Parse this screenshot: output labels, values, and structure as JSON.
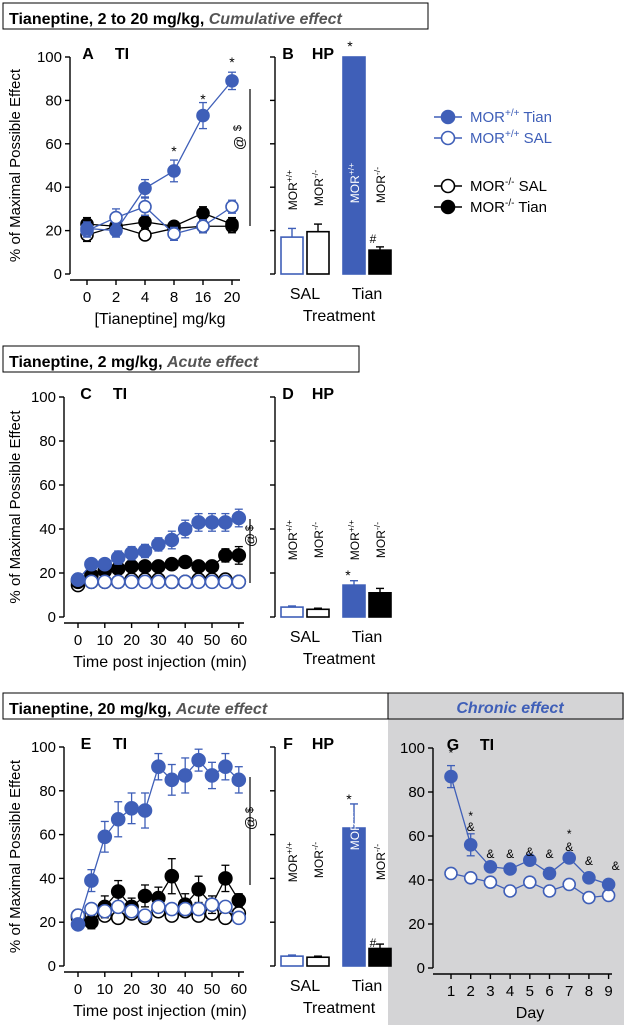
{
  "colors": {
    "blue": "#3f5fb8",
    "black": "#000000",
    "grey_panel": "#d4d4d6"
  },
  "legend": {
    "items": [
      {
        "key": "wt_tian",
        "base": "MOR",
        "sup": "+/+",
        "suffix": " Tian",
        "style": "blue_filled"
      },
      {
        "key": "wt_sal",
        "base": "MOR",
        "sup": "+/+",
        "suffix": " SAL",
        "style": "blue_open"
      },
      {
        "key": "ko_sal",
        "base": "MOR",
        "sup": "-/-",
        "suffix": " SAL",
        "style": "black_open"
      },
      {
        "key": "ko_tian",
        "base": "MOR",
        "sup": "-/-",
        "suffix": " Tian",
        "style": "black_filled"
      }
    ]
  },
  "sections": {
    "s1": {
      "title_bold": "Tianeptine, 2 to 20 mg/kg,",
      "title_italic": "Cumulative effect"
    },
    "s2": {
      "title_bold": "Tianeptine, 2 mg/kg,",
      "title_italic": "Acute effect"
    },
    "s3": {
      "title_bold": "Tianeptine, 20 mg/kg,",
      "title_italic": "Acute effect"
    },
    "s3b": {
      "title_italic": "Chronic effect"
    }
  },
  "axis_common": {
    "ylabel": "% of Maximal Possible Effect",
    "yticks": [
      "0",
      "20",
      "40",
      "60",
      "80",
      "100"
    ],
    "time_xlabel": "Time post injection (min)",
    "time_xticks": [
      "0",
      "10",
      "20",
      "30",
      "40",
      "50",
      "60"
    ],
    "hp_xlabel": "Treatment",
    "hp_groups": [
      "SAL",
      "Tian"
    ],
    "bar_labels": {
      "wt": "MOR+/+",
      "ko": "MOR-/-"
    }
  },
  "chart_data": [
    {
      "id": "A",
      "panel_letter": "A",
      "panel_title": "TI",
      "type": "line",
      "xlabel": "[Tianeptine] mg/kg",
      "ylabel": "% of Maximal Possible Effect",
      "x_categories": [
        "0",
        "2",
        "4",
        "8",
        "16",
        "20"
      ],
      "ylim": [
        0,
        100
      ],
      "series": [
        {
          "name": "MOR+/+ Tian",
          "values": [
            21,
            20,
            39.5,
            47.5,
            73,
            89
          ],
          "errors": [
            3,
            3,
            4,
            5,
            6,
            4
          ]
        },
        {
          "name": "MOR+/+ SAL",
          "values": [
            20,
            26,
            31,
            18.5,
            22,
            31
          ],
          "errors": [
            3,
            4,
            4,
            3,
            3,
            3
          ]
        },
        {
          "name": "MOR-/- SAL",
          "values": [
            18,
            22,
            18,
            21,
            22,
            22
          ],
          "errors": [
            3,
            3,
            2,
            2,
            3,
            3
          ]
        },
        {
          "name": "MOR-/- Tian",
          "values": [
            23,
            22,
            24,
            22,
            28,
            23
          ],
          "errors": [
            3,
            3,
            3,
            2,
            3,
            3
          ]
        }
      ],
      "annotations": [
        "*",
        "*",
        "*",
        "*",
        "$",
        "@"
      ]
    },
    {
      "id": "B",
      "panel_letter": "B",
      "panel_title": "HP",
      "type": "bar",
      "xlabel": "Treatment",
      "categories": [
        "SAL",
        "Tian"
      ],
      "ylim": [
        0,
        100
      ],
      "series": [
        {
          "name": "MOR+/+",
          "values": [
            17,
            100
          ],
          "errors": [
            4,
            0
          ]
        },
        {
          "name": "MOR-/-",
          "values": [
            19.5,
            11
          ],
          "errors": [
            3.5,
            1.5
          ]
        }
      ],
      "annotations": [
        "*",
        "#"
      ]
    },
    {
      "id": "C",
      "panel_letter": "C",
      "panel_title": "TI",
      "type": "line",
      "xlabel": "Time post injection (min)",
      "ylabel": "% of Maximal Possible Effect",
      "x": [
        0,
        5,
        10,
        15,
        20,
        25,
        30,
        35,
        40,
        45,
        50,
        55,
        60
      ],
      "ylim": [
        0,
        100
      ],
      "series": [
        {
          "name": "MOR+/+ Tian",
          "values": [
            17,
            24,
            24,
            27,
            29,
            30,
            33,
            35,
            40,
            43,
            43,
            43,
            45
          ],
          "errors": [
            2,
            2,
            2,
            3,
            3,
            3,
            3,
            4,
            4,
            4,
            4,
            4,
            4
          ]
        },
        {
          "name": "MOR-/- Tian",
          "values": [
            16,
            19,
            21,
            22,
            23,
            23,
            23,
            24,
            25,
            23,
            23,
            28,
            28
          ],
          "errors": [
            2,
            2,
            2,
            2,
            2,
            2,
            2,
            2,
            2,
            2,
            2,
            3,
            4
          ]
        },
        {
          "name": "MOR-/- SAL",
          "values": [
            14.5,
            16,
            16,
            16,
            17,
            17,
            17,
            16,
            16,
            17,
            17,
            17,
            16
          ],
          "errors": [
            1,
            1,
            1,
            1,
            1,
            1,
            1,
            1,
            1,
            1,
            1,
            1,
            1
          ]
        },
        {
          "name": "MOR+/+ SAL",
          "values": [
            17,
            16,
            16,
            16,
            16,
            16,
            16,
            16,
            16,
            16,
            16,
            16,
            16
          ],
          "errors": [
            1,
            1,
            1,
            1,
            1,
            1,
            1,
            1,
            1,
            1,
            1,
            1,
            1
          ]
        }
      ],
      "annotations": [
        "$",
        "@"
      ]
    },
    {
      "id": "D",
      "panel_letter": "D",
      "panel_title": "HP",
      "type": "bar",
      "xlabel": "Treatment",
      "categories": [
        "SAL",
        "Tian"
      ],
      "ylim": [
        0,
        100
      ],
      "series": [
        {
          "name": "MOR+/+",
          "values": [
            4.5,
            14.5
          ],
          "errors": [
            0.5,
            2
          ]
        },
        {
          "name": "MOR-/-",
          "values": [
            3.5,
            11
          ],
          "errors": [
            0.5,
            2
          ]
        }
      ],
      "annotations": [
        "*"
      ]
    },
    {
      "id": "E",
      "panel_letter": "E",
      "panel_title": "TI",
      "type": "line",
      "xlabel": "Time post injection (min)",
      "ylabel": "% of Maximal Possible Effect",
      "x": [
        0,
        5,
        10,
        15,
        20,
        25,
        30,
        35,
        40,
        45,
        50,
        55,
        60
      ],
      "ylim": [
        0,
        100
      ],
      "series": [
        {
          "name": "MOR+/+ Tian",
          "values": [
            19,
            39,
            59,
            67,
            72,
            71,
            91,
            85,
            87,
            94,
            87,
            91,
            85
          ],
          "errors": [
            2,
            5,
            7,
            8,
            7,
            8,
            6,
            7,
            8,
            5,
            6,
            6,
            6
          ]
        },
        {
          "name": "MOR-/- Tian",
          "values": [
            23,
            20,
            27,
            34,
            27,
            32,
            31,
            41,
            28,
            35,
            28,
            40,
            30
          ],
          "errors": [
            2,
            3,
            5,
            5,
            4,
            5,
            5,
            8,
            5,
            6,
            4,
            6,
            3
          ]
        },
        {
          "name": "MOR-/- SAL",
          "values": [
            22,
            24,
            23,
            22,
            24,
            22,
            25,
            23,
            25,
            23,
            24,
            22,
            24
          ],
          "errors": [
            2,
            2,
            2,
            2,
            2,
            2,
            2,
            2,
            2,
            2,
            2,
            2,
            2
          ]
        },
        {
          "name": "MOR+/+ SAL",
          "values": [
            23,
            26,
            25,
            27,
            25,
            23,
            27,
            26,
            26,
            26,
            28,
            27,
            22
          ],
          "errors": [
            2,
            2,
            2,
            2,
            2,
            2,
            2,
            2,
            2,
            2,
            2,
            2,
            2
          ]
        }
      ],
      "annotations": [
        "$",
        "@"
      ]
    },
    {
      "id": "F",
      "panel_letter": "F",
      "panel_title": "HP",
      "type": "bar",
      "xlabel": "Treatment",
      "categories": [
        "SAL",
        "Tian"
      ],
      "ylim": [
        0,
        100
      ],
      "series": [
        {
          "name": "MOR+/+",
          "values": [
            4.5,
            63
          ],
          "errors": [
            0.5,
            11
          ]
        },
        {
          "name": "MOR-/-",
          "values": [
            4,
            8
          ],
          "errors": [
            0.5,
            2
          ]
        }
      ],
      "annotations": [
        "*",
        "#"
      ]
    },
    {
      "id": "G",
      "panel_letter": "G",
      "panel_title": "TI",
      "type": "line",
      "xlabel": "Day",
      "x": [
        1,
        2,
        3,
        4,
        5,
        6,
        7,
        8,
        9
      ],
      "ylim": [
        0,
        100
      ],
      "series": [
        {
          "name": "MOR+/+ Tian",
          "values": [
            87,
            56,
            46,
            45,
            49,
            43,
            50,
            41,
            38
          ],
          "errors": [
            5,
            5,
            2,
            2,
            2,
            2,
            2,
            2,
            2
          ]
        },
        {
          "name": "MOR+/+ SAL",
          "values": [
            43,
            41,
            39,
            35,
            39,
            35,
            38,
            32,
            33
          ],
          "errors": [
            2,
            2,
            2,
            2,
            2,
            2,
            2,
            2,
            2
          ]
        }
      ],
      "annotations": [
        "*",
        "*",
        "&",
        "&",
        "&",
        "&",
        "&",
        "*",
        "&",
        "&",
        "&",
        "&"
      ]
    }
  ]
}
